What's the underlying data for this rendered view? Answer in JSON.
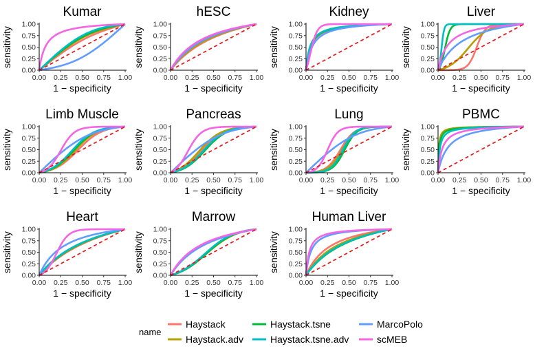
{
  "legend": {
    "title": "name",
    "entries": [
      {
        "name": "Haystack",
        "color": "#F8766D"
      },
      {
        "name": "Haystack.adv",
        "color": "#B79F00"
      },
      {
        "name": "Haystack.tsne",
        "color": "#00BA38"
      },
      {
        "name": "Haystack.tsne.adv",
        "color": "#00BFC4"
      },
      {
        "name": "MarcoPolo",
        "color": "#619CFF"
      },
      {
        "name": "scMEB",
        "color": "#F564E3"
      }
    ]
  },
  "reference_line_color": "#E41A1C",
  "chart_data": [
    {
      "type": "line",
      "title": "Kumar",
      "xlabel": "1 − specificity",
      "ylabel": "sensitivity",
      "xlim": [
        0,
        1
      ],
      "ylim": [
        0,
        1
      ],
      "xticks": [
        "0.00",
        "0.25",
        "0.50",
        "0.75",
        "1.00"
      ],
      "yticks": [
        "0.00",
        "0.25",
        "0.50",
        "0.75",
        "1.00"
      ],
      "series": [
        {
          "name": "Haystack",
          "shape": "diag",
          "k": 0.15
        },
        {
          "name": "Haystack.adv",
          "shape": "diag",
          "k": 0.2
        },
        {
          "name": "Haystack.tsne",
          "shape": "diag",
          "k": 0.22
        },
        {
          "name": "Haystack.tsne.adv",
          "shape": "diag",
          "k": 0.25
        },
        {
          "name": "MarcoPolo",
          "shape": "diag",
          "k": -0.22
        },
        {
          "name": "scMEB",
          "shape": "concave",
          "k": 0.08
        }
      ]
    },
    {
      "type": "line",
      "title": "hESC",
      "xlabel": "1 − specificity",
      "ylabel": "sensitivity",
      "xlim": [
        0,
        1
      ],
      "ylim": [
        0,
        1
      ],
      "xticks": [
        "0.00",
        "0.25",
        "0.50",
        "0.75",
        "1.00"
      ],
      "yticks": [
        "0.00",
        "0.25",
        "0.50",
        "0.75",
        "1.00"
      ],
      "series": [
        {
          "name": "Haystack",
          "shape": "concave",
          "k": 0.7
        },
        {
          "name": "Haystack.adv",
          "shape": "concave",
          "k": 0.6
        },
        {
          "name": "Haystack.tsne",
          "shape": "concave",
          "k": 0.5
        },
        {
          "name": "Haystack.tsne.adv",
          "shape": "concave",
          "k": 0.45
        },
        {
          "name": "MarcoPolo",
          "shape": "concave",
          "k": 0.5
        },
        {
          "name": "scMEB",
          "shape": "concave",
          "k": 0.4
        }
      ]
    },
    {
      "type": "line",
      "title": "Kidney",
      "xlabel": "1 − specificity",
      "ylabel": "sensitivity",
      "xlim": [
        0,
        1
      ],
      "ylim": [
        0,
        1
      ],
      "xticks": [
        "0.00",
        "0.25",
        "0.50",
        "0.75",
        "1.00"
      ],
      "yticks": [
        "0.00",
        "0.25",
        "0.50",
        "0.75",
        "1.00"
      ],
      "series": [
        {
          "name": "Haystack",
          "shape": "concave",
          "k": 0.06
        },
        {
          "name": "Haystack.adv",
          "shape": "concave",
          "k": 0.05
        },
        {
          "name": "Haystack.tsne",
          "shape": "concave",
          "k": 0.055
        },
        {
          "name": "Haystack.tsne.adv",
          "shape": "concave",
          "k": 0.05
        },
        {
          "name": "MarcoPolo",
          "shape": "concave",
          "k": 0.08
        },
        {
          "name": "scMEB",
          "shape": "sig",
          "k": 0.05,
          "s": 0.04
        }
      ]
    },
    {
      "type": "line",
      "title": "Liver",
      "xlabel": "1 − specificity",
      "ylabel": "sensitivity",
      "xlim": [
        0,
        1
      ],
      "ylim": [
        0,
        1
      ],
      "xticks": [
        "0.00",
        "0.25",
        "0.50",
        "0.75",
        "1.00"
      ],
      "yticks": [
        "0.00",
        "0.25",
        "0.50",
        "0.75",
        "1.00"
      ],
      "series": [
        {
          "name": "Haystack",
          "shape": "sig",
          "k": 0.45,
          "s": 0.05
        },
        {
          "name": "Haystack.adv",
          "shape": "sig",
          "k": 0.35,
          "s": 0.12
        },
        {
          "name": "Haystack.tsne",
          "shape": "sig",
          "k": 0.08,
          "s": 0.03
        },
        {
          "name": "Haystack.tsne.adv",
          "shape": "sig",
          "k": 0.04,
          "s": 0.015
        },
        {
          "name": "MarcoPolo",
          "shape": "concave",
          "k": 0.3
        },
        {
          "name": "scMEB",
          "shape": "concave",
          "k": 0.12
        }
      ]
    },
    {
      "type": "line",
      "title": "Limb Muscle",
      "xlabel": "1 − specificity",
      "ylabel": "sensitivity",
      "xlim": [
        0,
        1
      ],
      "ylim": [
        0,
        1
      ],
      "xticks": [
        "0.00",
        "0.25",
        "0.50",
        "0.75",
        "1.00"
      ],
      "yticks": [
        "0.00",
        "0.25",
        "0.50",
        "0.75",
        "1.00"
      ],
      "series": [
        {
          "name": "Haystack",
          "shape": "sig",
          "k": 0.45,
          "s": 0.14
        },
        {
          "name": "Haystack.adv",
          "shape": "sig",
          "k": 0.42,
          "s": 0.13
        },
        {
          "name": "Haystack.tsne",
          "shape": "sig",
          "k": 0.4,
          "s": 0.13
        },
        {
          "name": "Haystack.tsne.adv",
          "shape": "sig",
          "k": 0.38,
          "s": 0.13
        },
        {
          "name": "MarcoPolo",
          "shape": "diag",
          "k": 0.25
        },
        {
          "name": "scMEB",
          "shape": "sig",
          "k": 0.25,
          "s": 0.08
        }
      ]
    },
    {
      "type": "line",
      "title": "Pancreas",
      "xlabel": "1 − specificity",
      "ylabel": "sensitivity",
      "xlim": [
        0,
        1
      ],
      "ylim": [
        0,
        1
      ],
      "xticks": [
        "0.00",
        "0.25",
        "0.50",
        "0.75",
        "1.00"
      ],
      "yticks": [
        "0.00",
        "0.25",
        "0.50",
        "0.75",
        "1.00"
      ],
      "series": [
        {
          "name": "Haystack",
          "shape": "sig",
          "k": 0.35,
          "s": 0.13
        },
        {
          "name": "Haystack.adv",
          "shape": "sig",
          "k": 0.33,
          "s": 0.13
        },
        {
          "name": "Haystack.tsne",
          "shape": "sig",
          "k": 0.4,
          "s": 0.13
        },
        {
          "name": "Haystack.tsne.adv",
          "shape": "sig",
          "k": 0.38,
          "s": 0.13
        },
        {
          "name": "MarcoPolo",
          "shape": "diag",
          "k": 0.25
        },
        {
          "name": "scMEB",
          "shape": "sig",
          "k": 0.2,
          "s": 0.08
        }
      ]
    },
    {
      "type": "line",
      "title": "Lung",
      "xlabel": "1 − specificity",
      "ylabel": "sensitivity",
      "xlim": [
        0,
        1
      ],
      "ylim": [
        0,
        1
      ],
      "xticks": [
        "0.00",
        "0.25",
        "0.50",
        "0.75",
        "1.00"
      ],
      "yticks": [
        "0.00",
        "0.25",
        "0.50",
        "0.75",
        "1.00"
      ],
      "series": [
        {
          "name": "Haystack",
          "shape": "sig",
          "k": 0.4,
          "s": 0.08
        },
        {
          "name": "Haystack.adv",
          "shape": "sig",
          "k": 0.42,
          "s": 0.08
        },
        {
          "name": "Haystack.tsne",
          "shape": "sig",
          "k": 0.45,
          "s": 0.07
        },
        {
          "name": "Haystack.tsne.adv",
          "shape": "sig",
          "k": 0.43,
          "s": 0.07
        },
        {
          "name": "MarcoPolo",
          "shape": "diag",
          "k": 0.25
        },
        {
          "name": "scMEB",
          "shape": "sig",
          "k": 0.25,
          "s": 0.06
        }
      ]
    },
    {
      "type": "line",
      "title": "PBMC",
      "xlabel": "1 − specificity",
      "ylabel": "sensitivity",
      "xlim": [
        0,
        1
      ],
      "ylim": [
        0,
        1
      ],
      "xticks": [
        "0.00",
        "0.25",
        "0.50",
        "0.75",
        "1.00"
      ],
      "yticks": [
        "0.00",
        "0.25",
        "0.50",
        "0.75",
        "1.00"
      ],
      "series": [
        {
          "name": "Haystack",
          "shape": "concave",
          "k": 0.01
        },
        {
          "name": "Haystack.adv",
          "shape": "concave",
          "k": 0.008
        },
        {
          "name": "Haystack.tsne",
          "shape": "concave",
          "k": 0.012
        },
        {
          "name": "Haystack.tsne.adv",
          "shape": "concave",
          "k": 0.02
        },
        {
          "name": "MarcoPolo",
          "shape": "concave",
          "k": 0.12
        },
        {
          "name": "scMEB",
          "shape": "concave",
          "k": 0.05
        }
      ]
    },
    {
      "type": "line",
      "title": "Heart",
      "xlabel": "1 − specificity",
      "ylabel": "sensitivity",
      "xlim": [
        0,
        1
      ],
      "ylim": [
        0,
        1
      ],
      "xticks": [
        "0.00",
        "0.25",
        "0.50",
        "0.75",
        "1.00"
      ],
      "yticks": [
        "0.00",
        "0.25",
        "0.50",
        "0.75",
        "1.00"
      ],
      "series": [
        {
          "name": "Haystack",
          "shape": "concave",
          "k": 0.9
        },
        {
          "name": "Haystack.adv",
          "shape": "concave",
          "k": 0.8
        },
        {
          "name": "Haystack.tsne",
          "shape": "concave",
          "k": 0.75
        },
        {
          "name": "Haystack.tsne.adv",
          "shape": "concave",
          "k": 0.7
        },
        {
          "name": "MarcoPolo",
          "shape": "concave",
          "k": 0.3
        },
        {
          "name": "scMEB",
          "shape": "sig",
          "k": 0.2,
          "s": 0.07
        }
      ]
    },
    {
      "type": "line",
      "title": "Marrow",
      "xlabel": "1 − specificity",
      "ylabel": "sensitivity",
      "xlim": [
        0,
        1
      ],
      "ylim": [
        0,
        1
      ],
      "xticks": [
        "0.00",
        "0.25",
        "0.50",
        "0.75",
        "1.00"
      ],
      "yticks": [
        "0.00",
        "0.25",
        "0.50",
        "0.75",
        "1.00"
      ],
      "series": [
        {
          "name": "Haystack",
          "shape": "sig",
          "k": 0.4,
          "s": 0.18
        },
        {
          "name": "Haystack.adv",
          "shape": "sig",
          "k": 0.42,
          "s": 0.18
        },
        {
          "name": "Haystack.tsne",
          "shape": "sig",
          "k": 0.42,
          "s": 0.17
        },
        {
          "name": "Haystack.tsne.adv",
          "shape": "sig",
          "k": 0.4,
          "s": 0.17
        },
        {
          "name": "MarcoPolo",
          "shape": "concave",
          "k": 0.5
        },
        {
          "name": "scMEB",
          "shape": "concave",
          "k": 0.4
        }
      ]
    },
    {
      "type": "line",
      "title": "Human Liver",
      "xlabel": "1 − specificity",
      "ylabel": "sensitivity",
      "xlim": [
        0,
        1
      ],
      "ylim": [
        0,
        1
      ],
      "xticks": [
        "0.00",
        "0.25",
        "0.50",
        "0.75",
        "1.00"
      ],
      "yticks": [
        "0.00",
        "0.25",
        "0.50",
        "0.75",
        "1.00"
      ],
      "series": [
        {
          "name": "Haystack",
          "shape": "concave",
          "k": 0.3
        },
        {
          "name": "Haystack.adv",
          "shape": "concave",
          "k": 0.45
        },
        {
          "name": "Haystack.tsne",
          "shape": "concave",
          "k": 0.6
        },
        {
          "name": "Haystack.tsne.adv",
          "shape": "concave",
          "k": 0.55
        },
        {
          "name": "MarcoPolo",
          "shape": "concave",
          "k": 0.06
        },
        {
          "name": "scMEB",
          "shape": "concave",
          "k": 0.04
        }
      ]
    }
  ]
}
